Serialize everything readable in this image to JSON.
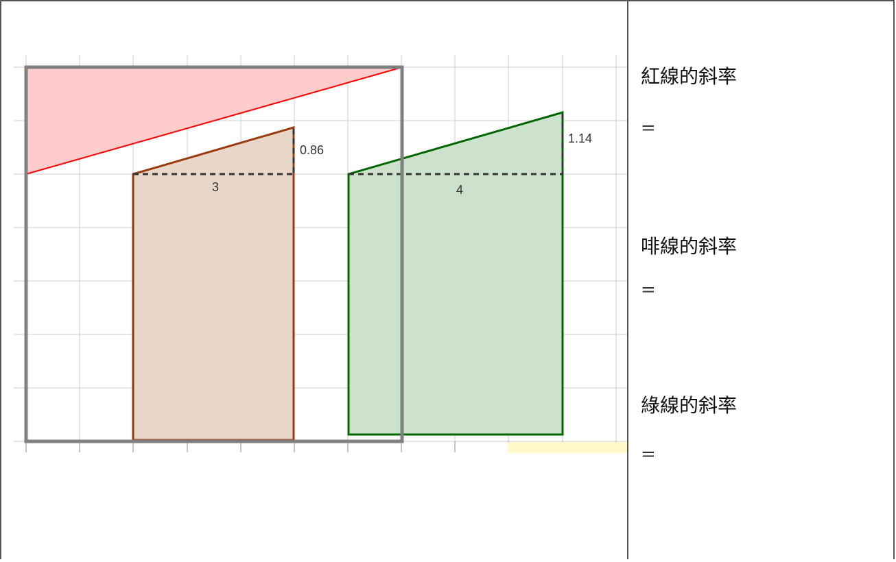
{
  "diagram": {
    "shapes": [
      {
        "name": "red-line",
        "color": "#ff0000",
        "fill": "#ffcccc"
      },
      {
        "name": "brown-line",
        "color": "#9a3b0e",
        "fill": "#e8d6c9",
        "run_label": "3",
        "rise_label": "0.86"
      },
      {
        "name": "green-line",
        "color": "#006600",
        "fill": "#cde2cd",
        "run_label": "4",
        "rise_label": "1.14"
      }
    ],
    "frame_color": "#808080",
    "grid_color": "#cccccc"
  },
  "panel": {
    "red_slope_label": "紅線的斜率",
    "red_slope_eq": "=",
    "brown_slope_label": "啡線的斜率",
    "brown_slope_eq": "=",
    "green_slope_label": "綠線的斜率",
    "green_slope_eq": "="
  }
}
